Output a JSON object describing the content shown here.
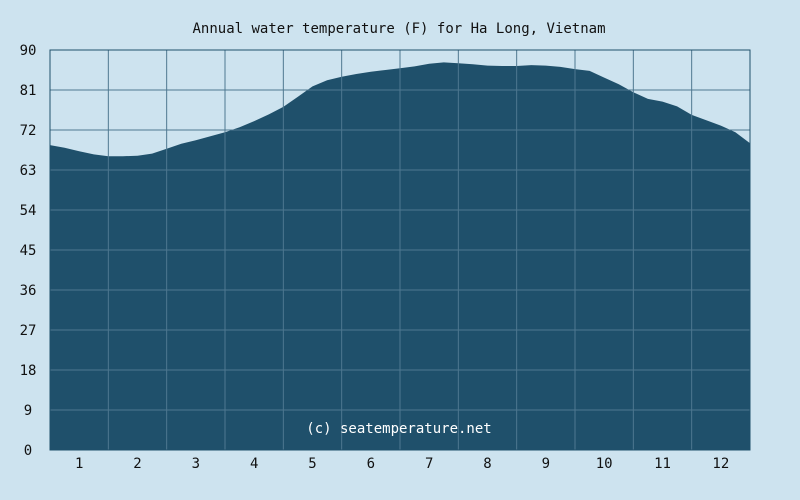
{
  "chart_data": {
    "type": "area",
    "title": "Annual water temperature (F) for Ha Long, Vietnam",
    "watermark": "(c) seatemperature.net",
    "xlabel": "",
    "ylabel": "",
    "x_ticks": [
      "1",
      "2",
      "3",
      "4",
      "5",
      "6",
      "7",
      "8",
      "9",
      "10",
      "11",
      "12"
    ],
    "y_ticks": [
      "0",
      "9",
      "18",
      "27",
      "36",
      "45",
      "54",
      "63",
      "72",
      "81",
      "90"
    ],
    "ylim": [
      0,
      90
    ],
    "xlim": [
      0.5,
      12.5
    ],
    "grid": true,
    "colors": {
      "background": "#cde3ef",
      "area": "#1f506b",
      "grid": "#4f7890",
      "plot_border": "#1f506b"
    },
    "series": [
      {
        "x": [
          0.5,
          0.75,
          1.0,
          1.25,
          1.5,
          1.75,
          2.0,
          2.25,
          2.5,
          2.75,
          3.0,
          3.25,
          3.5,
          3.75,
          4.0,
          4.25,
          4.5,
          4.75,
          5.0,
          5.25,
          5.5,
          5.75,
          6.0,
          6.25,
          6.5,
          6.75,
          7.0,
          7.25,
          7.5,
          7.75,
          8.0,
          8.25,
          8.5,
          8.75,
          9.0,
          9.25,
          9.5,
          9.75,
          10.0,
          10.25,
          10.5,
          10.75,
          11.0,
          11.25,
          11.5,
          11.75,
          12.0,
          12.25,
          12.5
        ],
        "values": [
          68.6,
          68.0,
          67.2,
          66.5,
          66.1,
          66.1,
          66.2,
          66.7,
          67.8,
          68.9,
          69.7,
          70.6,
          71.5,
          72.6,
          74.0,
          75.5,
          77.2,
          79.5,
          81.8,
          83.2,
          84.0,
          84.6,
          85.1,
          85.5,
          85.9,
          86.3,
          86.9,
          87.2,
          87.0,
          86.8,
          86.5,
          86.4,
          86.4,
          86.6,
          86.5,
          86.2,
          85.7,
          85.3,
          83.8,
          82.3,
          80.5,
          79.0,
          78.4,
          77.3,
          75.4,
          74.2,
          73.0,
          71.5,
          69.0
        ]
      }
    ]
  }
}
